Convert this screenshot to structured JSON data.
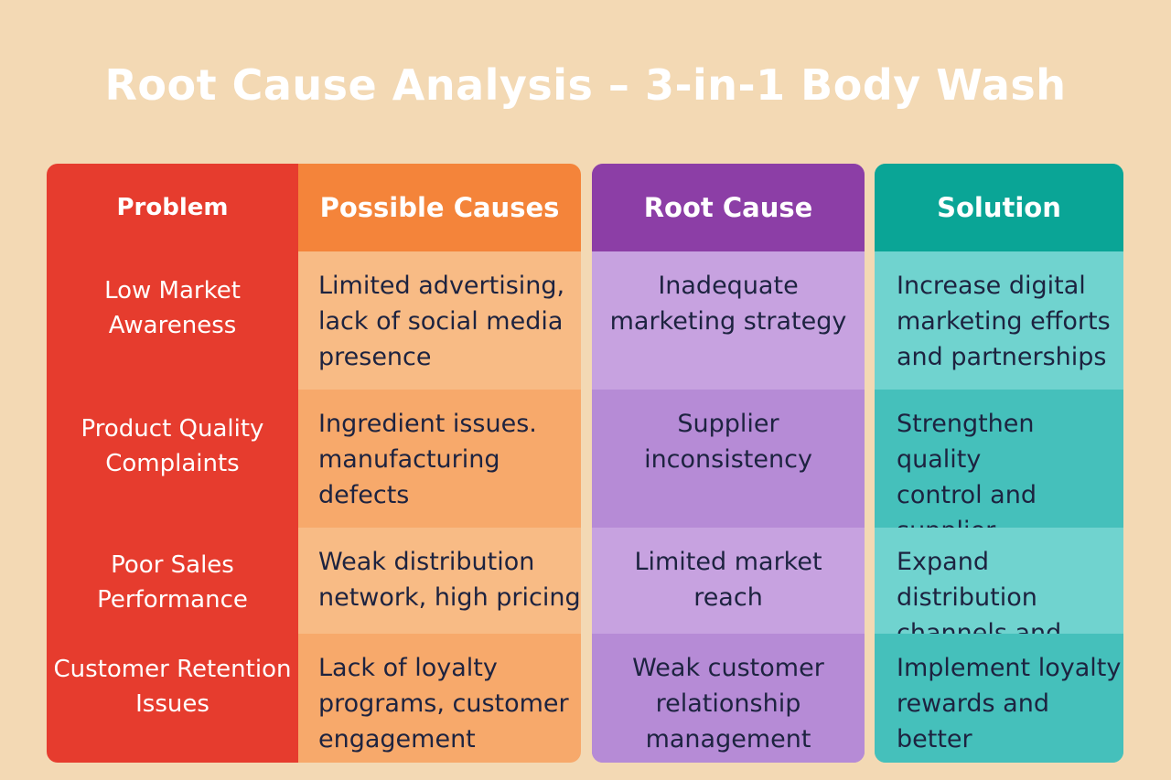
{
  "title": "Root Cause Analysis – 3-in-1 Body Wash",
  "colors": {
    "background": "#f3d9b4",
    "problem": "#e63c2e",
    "causes_header": "#f4843a",
    "root_header": "#8c3ea6",
    "solution_header": "#0aa596"
  },
  "headers": {
    "problem": "Problem",
    "causes": "Possible Causes",
    "root": "Root Cause",
    "solution": "Solution"
  },
  "rows": [
    {
      "problem": "Low Market\nAwareness",
      "causes": "Limited advertising,\nlack of social media\npresence",
      "root": "Inadequate\nmarketing strategy",
      "solution": "Increase digital\nmarketing efforts\nand partnerships"
    },
    {
      "problem": "Product Quality\nComplaints",
      "causes": "Ingredient issues.\nmanufacturing defects",
      "root": "Supplier\ninconsistency",
      "solution": "Strengthen quality\ncontrol and supplier\nvetting"
    },
    {
      "problem": "Poor Sales\nPerformance",
      "causes": "Weak distribution\nnetwork, high pricing",
      "root": "Limited market\nreach",
      "solution": "Expand distribution\nchannels and offer"
    },
    {
      "problem": "Customer Retention\nIssues",
      "causes": "Lack of loyalty\nprograms, customer\nengagement",
      "root": "Weak customer\nrelationship management",
      "solution": "Implement loyalty\nrewards and better\ncustomer service"
    }
  ]
}
